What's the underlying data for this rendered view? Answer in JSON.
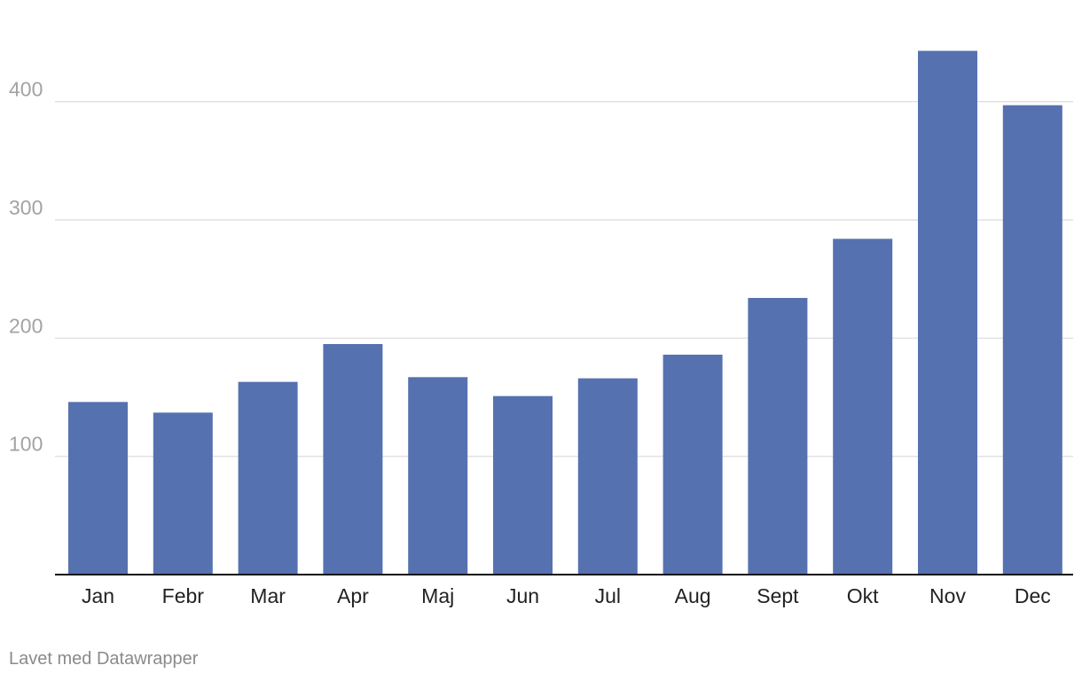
{
  "footer": {
    "credit": "Lavet med Datawrapper"
  },
  "colors": {
    "bar": "#5571b0",
    "grid": "#e1e1e1",
    "axis": "#111111"
  },
  "chart_data": {
    "type": "bar",
    "categories": [
      "Jan",
      "Febr",
      "Mar",
      "Apr",
      "Maj",
      "Jun",
      "Jul",
      "Aug",
      "Sept",
      "Okt",
      "Nov",
      "Dec"
    ],
    "values": [
      146,
      137,
      163,
      195,
      167,
      151,
      166,
      186,
      234,
      284,
      443,
      397
    ],
    "title": "",
    "xlabel": "",
    "ylabel": "",
    "ylim": [
      0,
      450
    ],
    "yticks": [
      100,
      200,
      300,
      400
    ],
    "grid": true,
    "legend": "none"
  }
}
